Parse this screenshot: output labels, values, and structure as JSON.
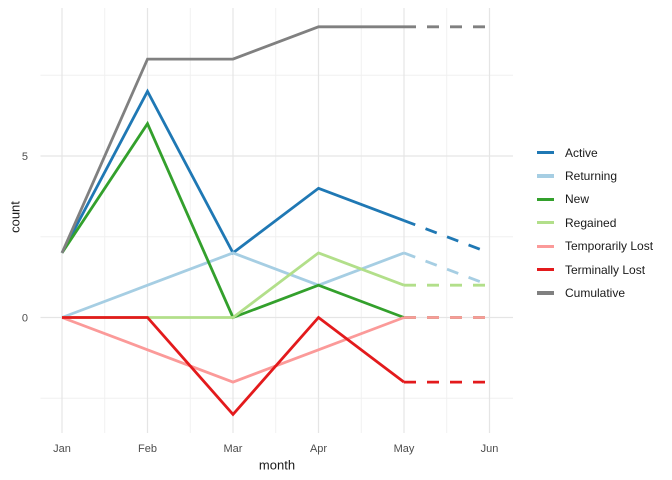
{
  "chart_data": {
    "type": "line",
    "title": "",
    "xlabel": "month",
    "ylabel": "count",
    "categories": [
      "Jan",
      "Feb",
      "Mar",
      "Apr",
      "May",
      "Jun"
    ],
    "y_tick_labels": [
      "0",
      "5"
    ],
    "y_major_ticks": [
      0,
      5
    ],
    "y_minor_ticks": [
      -2.5,
      2.5,
      7.5
    ],
    "ylim": [
      -3.6,
      9.6
    ],
    "grid": "major+minor",
    "legend_position": "right",
    "projection": "final segment May to Jun drawn dashed for every series",
    "solid_through_index": 4,
    "series": [
      {
        "name": "Active",
        "color": "#1F78B4",
        "values": [
          2,
          7,
          2,
          4,
          3,
          2
        ]
      },
      {
        "name": "Returning",
        "color": "#A6CEE3",
        "values": [
          0,
          1,
          2,
          1,
          2,
          1
        ]
      },
      {
        "name": "New",
        "color": "#33A02C",
        "values": [
          2,
          6,
          0,
          1,
          0,
          0
        ]
      },
      {
        "name": "Regained",
        "color": "#B2DF8A",
        "values": [
          0,
          0,
          0,
          2,
          1,
          1
        ]
      },
      {
        "name": "Temporarily Lost",
        "color": "#FB9A99",
        "values": [
          0,
          -1,
          -2,
          -1,
          0,
          0
        ]
      },
      {
        "name": "Terminally Lost",
        "color": "#E31A1C",
        "values": [
          0,
          0,
          -3,
          0,
          -2,
          -2
        ]
      },
      {
        "name": "Cumulative",
        "color": "#808080",
        "values": [
          2,
          8,
          8,
          9,
          9,
          9
        ]
      }
    ],
    "style": {
      "grid_major_color": "#E5E5E5",
      "grid_minor_color": "#F0F0F0",
      "tick_label_color": "#4D4D4D",
      "axis_title_color": "#1a1a1a",
      "line_width": 2.8
    }
  }
}
